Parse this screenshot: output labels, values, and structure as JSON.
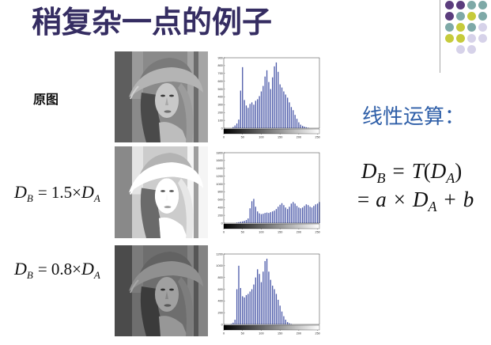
{
  "slide": {
    "title": "稍复杂一点的例子"
  },
  "colors": {
    "title": "#352d62",
    "heading": "#2f5fa8",
    "bars": "#4a58a8",
    "decor_line": "#a8a8a8"
  },
  "decor": {
    "dot_colors": [
      [
        "#5b3d7d",
        "#5b3d7d",
        "#7ea9a7",
        "#7ea9a7"
      ],
      [
        "#5b3d7d",
        "#7ea9a7",
        "#c6cb3b",
        "#7ea9a7"
      ],
      [
        "#7ea9a7",
        "#c6cb3b",
        "#7ea9a7",
        "#d6d2e9"
      ],
      [
        "#c6cb3b",
        "#c6cb3b",
        "#d6d2e9",
        "#d6d2e9"
      ],
      [
        null,
        "#d6d2e9",
        "#d6d2e9",
        null
      ]
    ]
  },
  "rows": {
    "original": {
      "label": "原图"
    },
    "scaled_up": {
      "d1": "D",
      "s1": "B",
      "mid": "= 1.5×",
      "d2": "D",
      "s2": "A"
    },
    "scaled_down": {
      "d1": "D",
      "s1": "B",
      "mid": "= 0.8×",
      "d2": "D",
      "s2": "A"
    }
  },
  "linear_op": {
    "heading": "线性运算：",
    "eq1": {
      "d1": "D",
      "s1": "B",
      "eq": "=",
      "t": "T",
      "lp": "(",
      "d2": "D",
      "s2": "A",
      "rp": ")"
    },
    "eq2": {
      "eq": "=",
      "a": "a",
      "times": "×",
      "d": "D",
      "s": "A",
      "plus": "+",
      "b": "b"
    }
  },
  "chart_data": [
    {
      "type": "bar",
      "xlim": [
        0,
        255
      ],
      "ylim": [
        0,
        900
      ],
      "xticks": [
        0,
        50,
        100,
        150,
        200,
        250
      ],
      "yticks": [
        0,
        100,
        200,
        300,
        400,
        500,
        600,
        700,
        800,
        900
      ],
      "grid": false,
      "x": [
        0,
        5,
        10,
        15,
        20,
        25,
        30,
        35,
        40,
        45,
        50,
        55,
        60,
        65,
        70,
        75,
        80,
        85,
        90,
        95,
        100,
        105,
        110,
        115,
        120,
        125,
        130,
        135,
        140,
        145,
        150,
        155,
        160,
        165,
        170,
        175,
        180,
        185,
        190,
        195,
        200,
        205,
        210,
        215,
        220,
        225,
        230,
        235,
        240,
        245,
        250,
        255
      ],
      "values": [
        0,
        0,
        0,
        0,
        0,
        15,
        35,
        60,
        110,
        480,
        780,
        360,
        290,
        260,
        310,
        330,
        300,
        350,
        370,
        410,
        470,
        540,
        660,
        740,
        590,
        500,
        650,
        790,
        840,
        720,
        560,
        520,
        470,
        430,
        390,
        330,
        270,
        230,
        170,
        120,
        75,
        45,
        30,
        20,
        12,
        6,
        0,
        0,
        0,
        0,
        0,
        0
      ]
    },
    {
      "type": "bar",
      "xlim": [
        0,
        255
      ],
      "ylim": [
        0,
        1800
      ],
      "xticks": [
        0,
        50,
        100,
        150,
        200,
        250
      ],
      "yticks": [
        0,
        200,
        400,
        600,
        800,
        1000,
        1200,
        1400,
        1600,
        1800
      ],
      "grid": false,
      "x": [
        0,
        5,
        10,
        15,
        20,
        25,
        30,
        35,
        40,
        45,
        50,
        55,
        60,
        65,
        70,
        75,
        80,
        85,
        90,
        95,
        100,
        105,
        110,
        115,
        120,
        125,
        130,
        135,
        140,
        145,
        150,
        155,
        160,
        165,
        170,
        175,
        180,
        185,
        190,
        195,
        200,
        205,
        210,
        215,
        220,
        225,
        230,
        235,
        240,
        245,
        250,
        255
      ],
      "values": [
        0,
        0,
        0,
        0,
        0,
        0,
        0,
        15,
        25,
        35,
        45,
        60,
        80,
        120,
        380,
        560,
        620,
        420,
        300,
        250,
        230,
        240,
        260,
        270,
        260,
        280,
        300,
        320,
        360,
        420,
        470,
        510,
        460,
        400,
        360,
        420,
        500,
        540,
        500,
        440,
        400,
        380,
        400,
        440,
        480,
        460,
        420,
        400,
        440,
        480,
        500,
        540
      ]
    },
    {
      "type": "bar",
      "xlim": [
        0,
        255
      ],
      "ylim": [
        0,
        1200
      ],
      "xticks": [
        0,
        50,
        100,
        150,
        200,
        250
      ],
      "yticks": [
        0,
        200,
        400,
        600,
        800,
        1000,
        1200
      ],
      "grid": false,
      "x": [
        0,
        5,
        10,
        15,
        20,
        25,
        30,
        35,
        40,
        45,
        50,
        55,
        60,
        65,
        70,
        75,
        80,
        85,
        90,
        95,
        100,
        105,
        110,
        115,
        120,
        125,
        130,
        135,
        140,
        145,
        150,
        155,
        160,
        165,
        170,
        175,
        180,
        185,
        190,
        195,
        200,
        205,
        210,
        215,
        220,
        225,
        230,
        235,
        240,
        245,
        250,
        255
      ],
      "values": [
        0,
        0,
        0,
        0,
        10,
        30,
        80,
        600,
        1000,
        620,
        480,
        460,
        500,
        520,
        560,
        600,
        680,
        800,
        940,
        860,
        720,
        900,
        1080,
        1120,
        900,
        760,
        660,
        600,
        520,
        420,
        320,
        220,
        140,
        80,
        40,
        20,
        8,
        0,
        0,
        0,
        0,
        0,
        0,
        0,
        0,
        0,
        0,
        0,
        0,
        0,
        0,
        0
      ]
    }
  ]
}
